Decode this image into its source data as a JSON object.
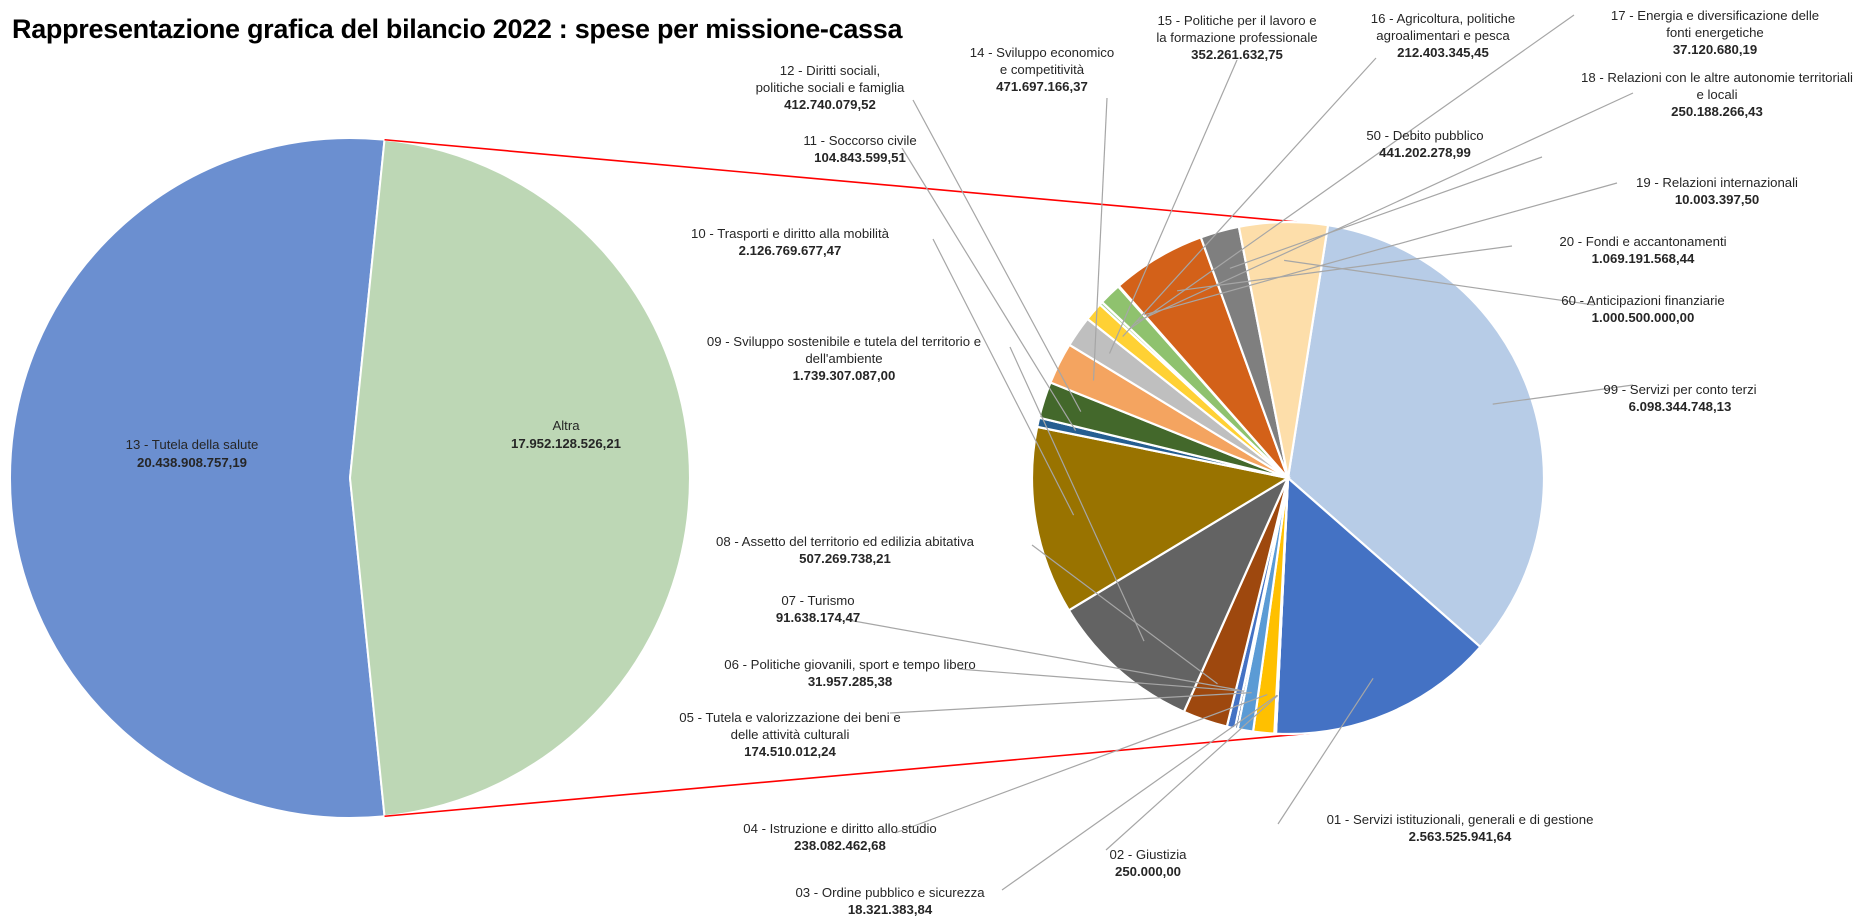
{
  "title": "Rappresentazione grafica del bilancio 2022 : spese per missione-cassa",
  "chart_data": {
    "type": "pie",
    "subtype": "pie-of-pie",
    "title": "Rappresentazione grafica del bilancio 2022 : spese per missione-cassa",
    "main_pie": [
      {
        "label": "13 - Tutela della salute",
        "value_text": "20.438.908.757,19",
        "value": 20438908757.19,
        "color": "#6b8fd0"
      },
      {
        "label": "Altra",
        "value_text": "17.952.128.526,21",
        "value": 17952128526.21,
        "color": "#bdd7b5"
      }
    ],
    "secondary_pie": [
      {
        "label": "99 - Servizi per conto terzi",
        "value_text": "6.098.344.748,13",
        "value": 6098344748.13,
        "color": "#b7cce7"
      },
      {
        "label": "01 - Servizi istituzionali, generali e di gestione",
        "value_text": "2.563.525.941,64",
        "value": 2563525941.64,
        "color": "#4472c4"
      },
      {
        "label": "02 - Giustizia",
        "value_text": "250.000,00",
        "value": 250000.0,
        "color": "#ed7d31"
      },
      {
        "label": "03 - Ordine pubblico e sicurezza",
        "value_text": "18.321.383,84",
        "value": 18321383.84,
        "color": "#a5a5a5"
      },
      {
        "label": "04 - Istruzione e diritto allo studio",
        "value_text": "238.082.462,68",
        "value": 238082462.68,
        "color": "#ffc000"
      },
      {
        "label": "05 - Tutela e valorizzazione dei beni e delle attività culturali",
        "value_text": "174.510.012,24",
        "value": 174510012.24,
        "color": "#5b9bd5"
      },
      {
        "label": "06 - Politiche giovanili, sport e tempo libero",
        "value_text": "31.957.285,38",
        "value": 31957285.38,
        "color": "#264478"
      },
      {
        "label": "07 - Turismo",
        "value_text": "91.638.174,47",
        "value": 91638174.47,
        "color": "#4472c4"
      },
      {
        "label": "08 - Assetto del territorio ed edilizia abitativa",
        "value_text": "507.269.738,21",
        "value": 507269738.21,
        "color": "#9e480e"
      },
      {
        "label": "09 - Sviluppo sostenibile e tutela del territorio e dell'ambiente",
        "value_text": "1.739.307.087,00",
        "value": 1739307087.0,
        "color": "#636363"
      },
      {
        "label": "10 - Trasporti e diritto alla mobilità",
        "value_text": "2.126.769.677,47",
        "value": 2126769677.47,
        "color": "#997300"
      },
      {
        "label": "11 - Soccorso civile",
        "value_text": "104.843.599,51",
        "value": 104843599.51,
        "color": "#255e91"
      },
      {
        "label": "12 - Diritti sociali, politiche sociali e famiglia",
        "value_text": "412.740.079,52",
        "value": 412740079.52,
        "color": "#43682b"
      },
      {
        "label": "14 - Sviluppo economico e competitività",
        "value_text": "471.697.166,37",
        "value": 471697166.37,
        "color": "#f4a460"
      },
      {
        "label": "15 - Politiche per il lavoro e la formazione professionale",
        "value_text": "352.261.632,75",
        "value": 352261632.75,
        "color": "#bfbfbf"
      },
      {
        "label": "16 - Agricoltura, politiche agroalimentari e pesca",
        "value_text": "212.403.345,45",
        "value": 212403345.45,
        "color": "#ffd134"
      },
      {
        "label": "17 - Energia e diversificazione delle fonti energetiche",
        "value_text": "37.120.680,19",
        "value": 37120680.19,
        "color": "#a9d18e"
      },
      {
        "label": "18 - Relazioni con le altre autonomie territoriali e locali",
        "value_text": "250.188.266,43",
        "value": 250188266.43,
        "color": "#8fc26e"
      },
      {
        "label": "19 - Relazioni internazionali",
        "value_text": "10.003.397,50",
        "value": 10003397.5,
        "color": "#2e75b6"
      },
      {
        "label": "20 - Fondi e accantonamenti",
        "value_text": "1.069.191.568,44",
        "value": 1069191568.44,
        "color": "#d36119"
      },
      {
        "label": "50 - Debito pubblico",
        "value_text": "441.202.278,99",
        "value": 441202278.99,
        "color": "#7f7f7f"
      },
      {
        "label": "60 - Anticipazioni finanziarie",
        "value_text": "1.000.500.000,00",
        "value": 1000500000.0,
        "color": "#fddeaa"
      }
    ],
    "connector_color": "#ff0000",
    "leader_color": "#a6a6a6"
  }
}
